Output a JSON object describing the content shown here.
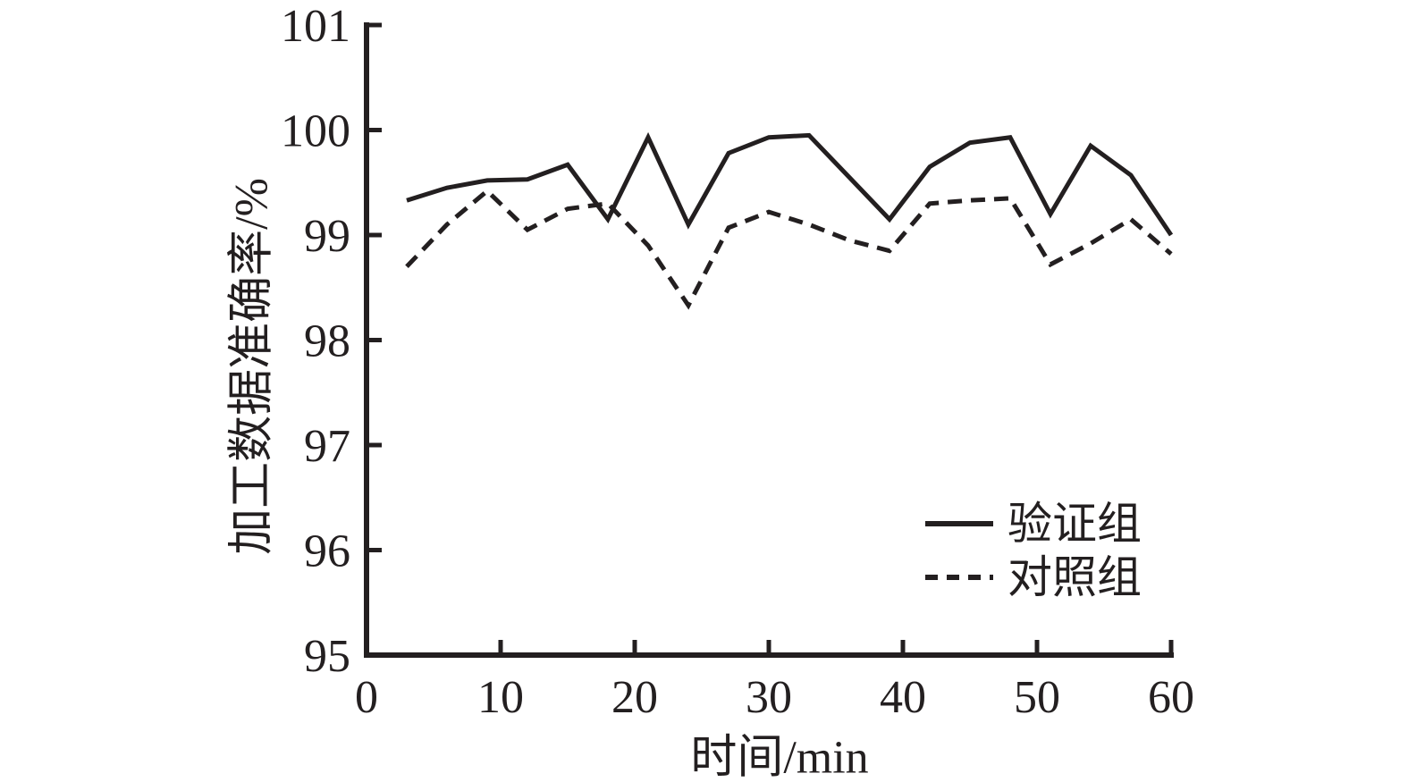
{
  "chart_data": {
    "type": "line",
    "title": "",
    "xlabel": "时间/min",
    "ylabel": "加工数据准确率/%",
    "xlim": [
      0,
      60
    ],
    "ylim": [
      95,
      101
    ],
    "xticks": [
      0,
      10,
      20,
      30,
      40,
      50,
      60
    ],
    "yticks": [
      95,
      96,
      97,
      98,
      99,
      100,
      101
    ],
    "grid": false,
    "legend_position": "inside lower right",
    "line_color": "#231f20",
    "background": "#ffffff",
    "x": [
      3,
      6,
      9,
      12,
      15,
      18,
      21,
      24,
      27,
      30,
      33,
      36,
      39,
      42,
      45,
      48,
      51,
      54,
      57,
      60
    ],
    "series": [
      {
        "name": "验证组",
        "style": "solid",
        "values": [
          99.33,
          99.45,
          99.52,
          99.53,
          99.67,
          99.15,
          99.93,
          99.1,
          99.78,
          99.93,
          99.95,
          99.55,
          99.15,
          99.65,
          99.88,
          99.93,
          99.2,
          99.85,
          99.57,
          99.0
        ]
      },
      {
        "name": "对照组",
        "style": "dashed",
        "values": [
          98.7,
          99.1,
          99.42,
          99.05,
          99.25,
          99.3,
          98.9,
          98.33,
          99.07,
          99.22,
          99.1,
          98.95,
          98.85,
          99.3,
          99.33,
          99.35,
          98.72,
          98.92,
          99.15,
          98.82
        ]
      }
    ]
  }
}
